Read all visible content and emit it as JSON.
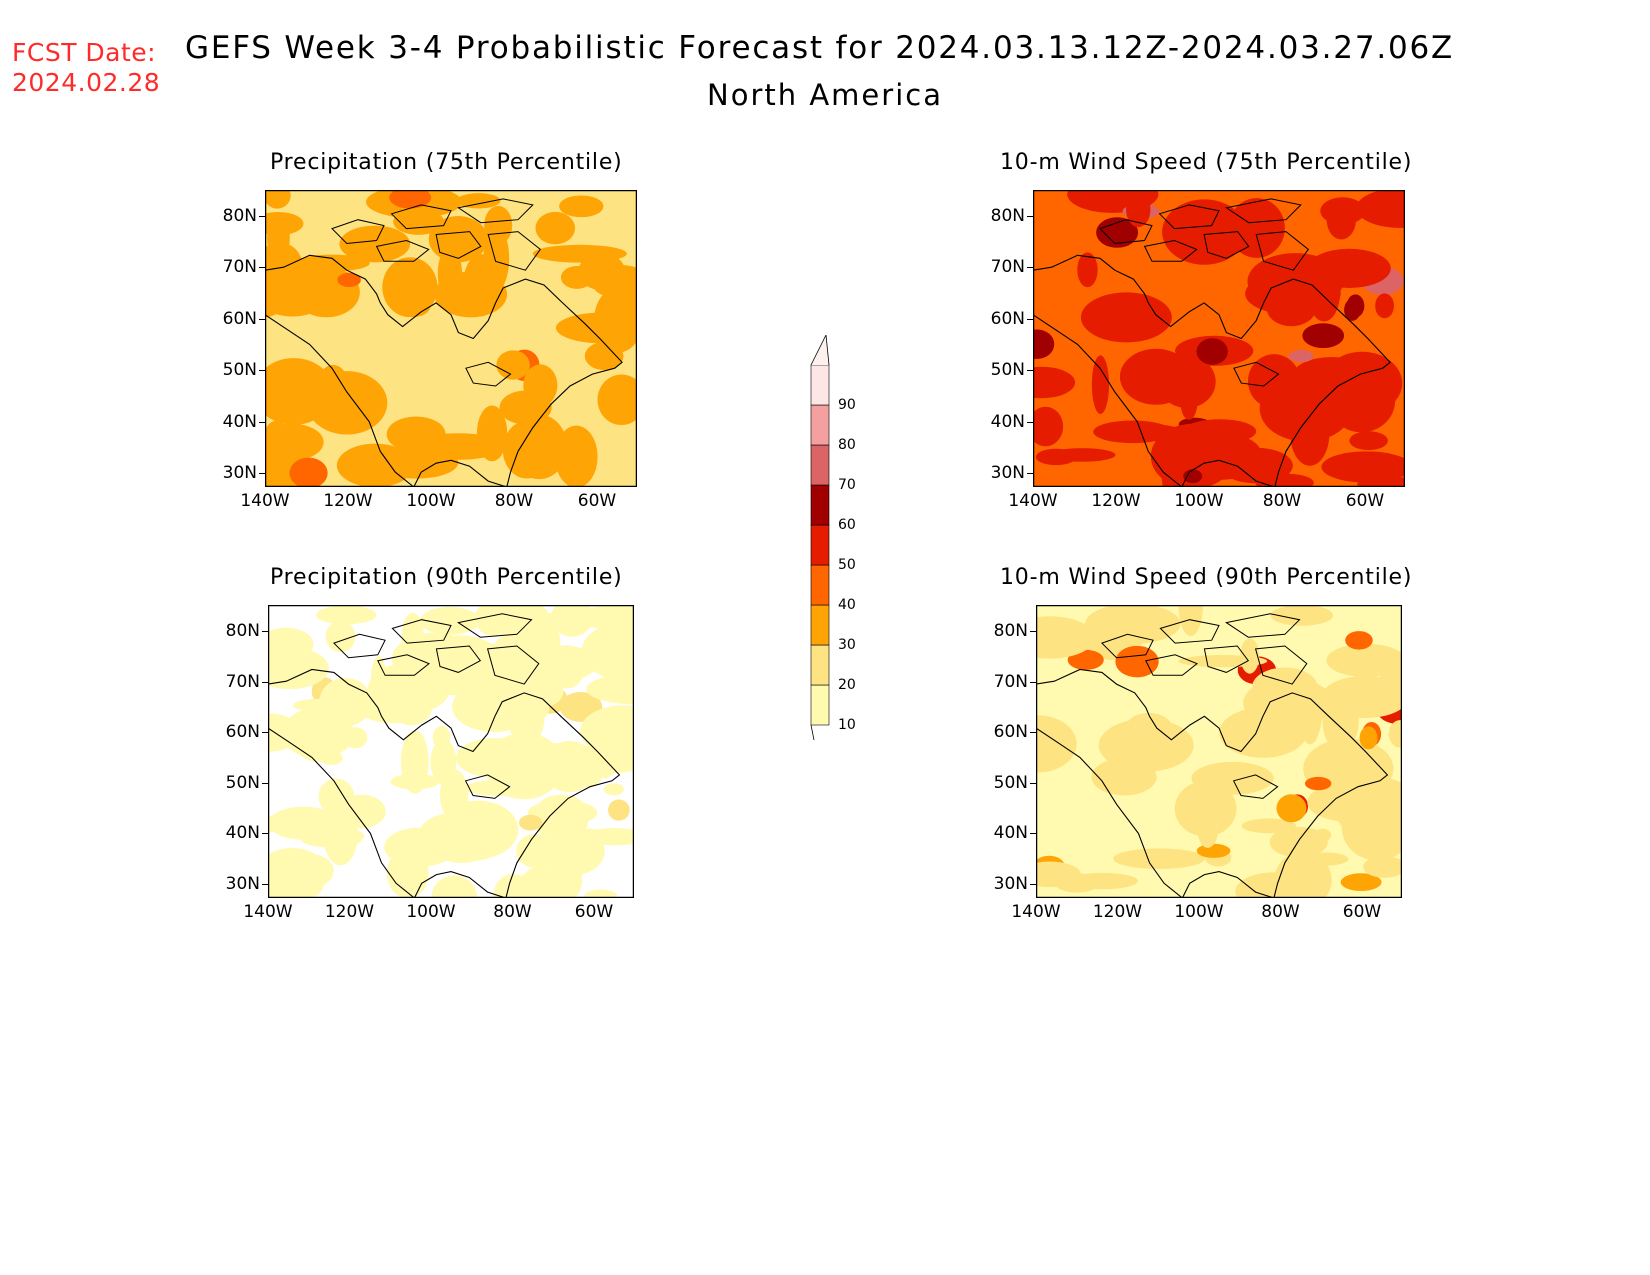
{
  "header": {
    "fcst_label": "FCST Date:",
    "fcst_date": "2024.02.28",
    "title": "GEFS Week 3-4 Probabilistic Forecast for 2024.03.13.12Z-2024.03.27.06Z",
    "subtitle": "North America"
  },
  "axes": {
    "lat_labels": [
      "80N",
      "70N",
      "60N",
      "50N",
      "40N",
      "30N"
    ],
    "lon_labels": [
      "140W",
      "120W",
      "100W",
      "80W",
      "60W"
    ]
  },
  "panels": [
    {
      "title": "Precipitation (75th Percentile)",
      "base_level": 20,
      "hotspot_levels": [
        30,
        40
      ]
    },
    {
      "title": "10-m Wind Speed (75th Percentile)",
      "base_level": 40,
      "hotspot_levels": [
        50,
        60,
        70
      ]
    },
    {
      "title": "Precipitation (90th Percentile)",
      "base_level": 0,
      "hotspot_levels": [
        10,
        20
      ]
    },
    {
      "title": "10-m Wind Speed (90th Percentile)",
      "base_level": 10,
      "hotspot_levels": [
        20,
        30,
        40,
        50
      ]
    }
  ],
  "colorbar": {
    "levels": [
      "10",
      "20",
      "30",
      "40",
      "50",
      "60",
      "70",
      "80",
      "90"
    ],
    "colors": [
      "#fffab0",
      "#fde382",
      "#ffa405",
      "#ff6600",
      "#e61c00",
      "#a00000",
      "#dc6464",
      "#f5a0a0",
      "#fde6e6"
    ]
  }
}
